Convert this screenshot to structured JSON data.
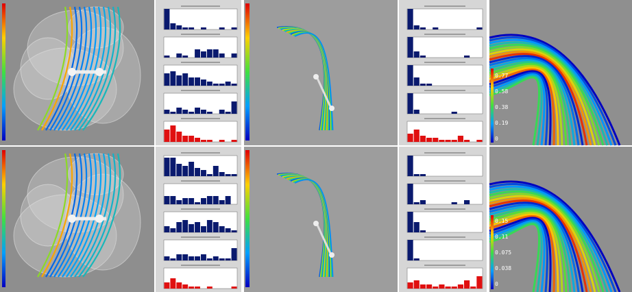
{
  "colorbars": [
    {
      "labels": [
        "0.77",
        "0.58",
        "0.38",
        "0.19",
        "0"
      ]
    },
    {
      "labels": [
        "0.15",
        "0.11",
        "0.075",
        "0.038",
        "0"
      ]
    }
  ],
  "histogram_panels": [
    {
      "ylim": [
        0,
        10
      ],
      "histograms": [
        {
          "color": "#0a1a6e",
          "values": [
            10,
            3,
            2,
            1,
            1,
            0,
            1,
            0,
            0,
            1,
            0,
            1
          ]
        },
        {
          "color": "#0a1a6e",
          "values": [
            1,
            0,
            2,
            1,
            0,
            4,
            3,
            4,
            4,
            2,
            0,
            2
          ]
        },
        {
          "color": "#0a1a6e",
          "values": [
            6,
            7,
            5,
            6,
            4,
            4,
            3,
            2,
            1,
            1,
            2,
            1
          ]
        },
        {
          "color": "#0a1a6e",
          "values": [
            2,
            1,
            3,
            2,
            1,
            3,
            2,
            1,
            0,
            2,
            1,
            6
          ]
        },
        {
          "color": "#e01010",
          "values": [
            6,
            8,
            5,
            3,
            3,
            2,
            1,
            1,
            0,
            1,
            0,
            1
          ]
        }
      ]
    },
    {
      "ylim": [
        0,
        10
      ],
      "histograms": [
        {
          "color": "#0a1a6e",
          "values": [
            9,
            9,
            6,
            5,
            7,
            4,
            3,
            1,
            5,
            2,
            1,
            1
          ]
        },
        {
          "color": "#0a1a6e",
          "values": [
            4,
            4,
            2,
            3,
            3,
            1,
            3,
            4,
            4,
            2,
            4,
            0
          ]
        },
        {
          "color": "#0a1a6e",
          "values": [
            3,
            2,
            5,
            6,
            4,
            5,
            3,
            6,
            5,
            3,
            2,
            1
          ]
        },
        {
          "color": "#0a1a6e",
          "values": [
            2,
            1,
            3,
            3,
            2,
            2,
            3,
            1,
            2,
            1,
            1,
            6
          ]
        },
        {
          "color": "#e01010",
          "values": [
            3,
            5,
            3,
            2,
            1,
            1,
            0,
            1,
            0,
            0,
            0,
            1
          ]
        }
      ]
    },
    {
      "ylim": [
        0,
        10
      ],
      "histograms": [
        {
          "color": "#0a1a6e",
          "values": [
            10,
            2,
            1,
            0,
            1,
            0,
            0,
            0,
            0,
            0,
            0,
            1
          ]
        },
        {
          "color": "#0a1a6e",
          "values": [
            10,
            3,
            1,
            0,
            0,
            0,
            0,
            0,
            0,
            1,
            0,
            0
          ]
        },
        {
          "color": "#0a1a6e",
          "values": [
            10,
            4,
            1,
            1,
            0,
            0,
            0,
            0,
            0,
            0,
            0,
            0
          ]
        },
        {
          "color": "#0a1a6e",
          "values": [
            10,
            2,
            0,
            0,
            0,
            0,
            0,
            1,
            0,
            0,
            0,
            0
          ]
        },
        {
          "color": "#e01010",
          "values": [
            4,
            6,
            3,
            2,
            2,
            1,
            1,
            1,
            3,
            1,
            0,
            1
          ]
        }
      ]
    },
    {
      "ylim": [
        0,
        10
      ],
      "histograms": [
        {
          "color": "#0a1a6e",
          "values": [
            10,
            1,
            1,
            0,
            0,
            0,
            0,
            0,
            0,
            0,
            0,
            0
          ]
        },
        {
          "color": "#0a1a6e",
          "values": [
            10,
            1,
            2,
            0,
            0,
            0,
            0,
            1,
            0,
            2,
            0,
            0
          ]
        },
        {
          "color": "#0a1a6e",
          "values": [
            10,
            5,
            1,
            0,
            0,
            0,
            0,
            0,
            0,
            0,
            0,
            0
          ]
        },
        {
          "color": "#0a1a6e",
          "values": [
            10,
            1,
            0,
            0,
            0,
            0,
            0,
            0,
            0,
            0,
            0,
            0
          ]
        },
        {
          "color": "#e01010",
          "values": [
            3,
            4,
            2,
            2,
            1,
            2,
            1,
            1,
            2,
            4,
            1,
            6
          ]
        }
      ]
    }
  ]
}
